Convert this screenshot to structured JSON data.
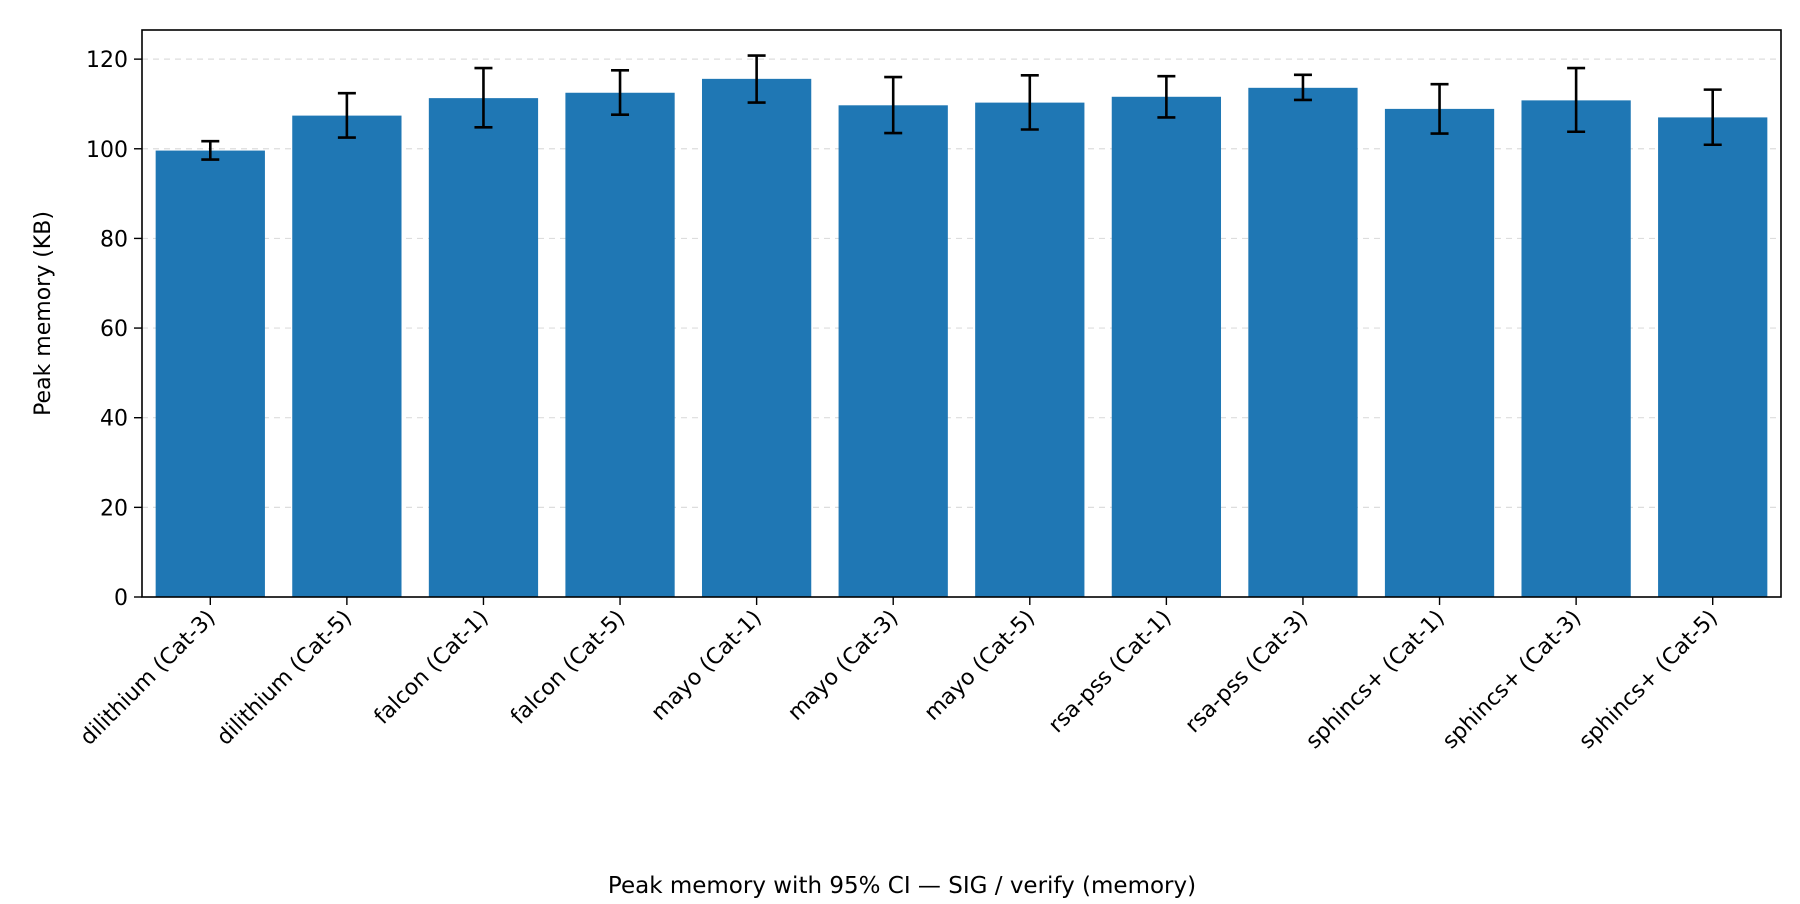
{
  "chart_data": {
    "type": "bar",
    "title": "",
    "caption": "Peak memory with 95% CI — SIG / verify (memory)",
    "xlabel": "",
    "ylabel": "Peak memory (KB)",
    "categories": [
      "dilithium (Cat-3)",
      "dilithium (Cat-5)",
      "falcon (Cat-1)",
      "falcon (Cat-5)",
      "mayo (Cat-1)",
      "mayo (Cat-3)",
      "mayo (Cat-5)",
      "rsa-pss (Cat-1)",
      "rsa-pss (Cat-3)",
      "sphincs+ (Cat-1)",
      "sphincs+ (Cat-3)",
      "sphincs+ (Cat-5)"
    ],
    "values": [
      99.6,
      107.4,
      111.3,
      112.5,
      115.6,
      109.7,
      110.3,
      111.6,
      113.6,
      108.9,
      110.8,
      107.0
    ],
    "ci_low": [
      97.6,
      102.5,
      104.8,
      107.6,
      110.3,
      103.5,
      104.3,
      107.0,
      110.9,
      103.4,
      103.8,
      100.9
    ],
    "ci_high": [
      101.7,
      112.4,
      118.0,
      117.5,
      120.8,
      116.0,
      116.4,
      116.2,
      116.5,
      114.4,
      118.0,
      113.2
    ],
    "ylim": [
      0,
      126.5
    ],
    "yticks": [
      0,
      20,
      40,
      60,
      80,
      100,
      120
    ],
    "grid": "horizontal-dashed",
    "legend": "none",
    "colors": {
      "bar": "#1f77b4",
      "errorbar": "#000000",
      "grid": "#dddddd",
      "axis": "#000000"
    }
  }
}
